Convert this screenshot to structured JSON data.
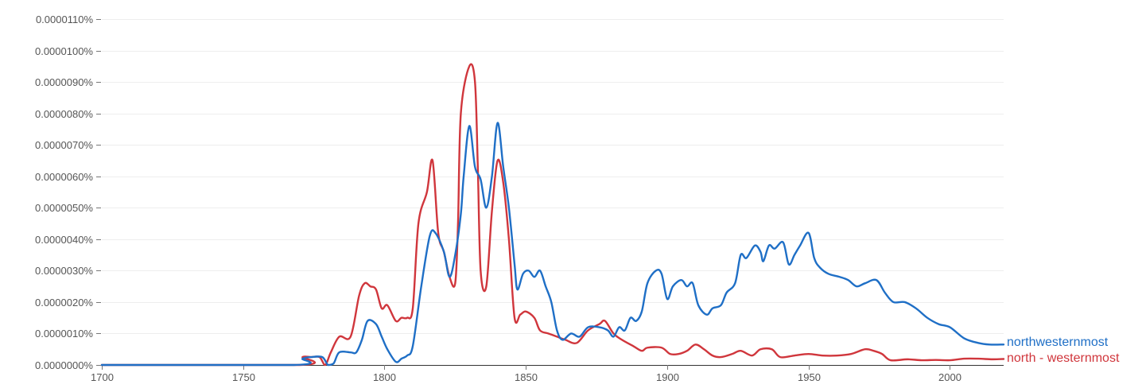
{
  "chart_data": {
    "type": "line",
    "title": "",
    "xlabel": "",
    "ylabel": "",
    "xlim": [
      1700,
      2019
    ],
    "ylim": [
      0,
      1.1e-05
    ],
    "grid": true,
    "x_ticks": [
      1700,
      1750,
      1800,
      1850,
      1900,
      1950,
      2000
    ],
    "x_tick_labels": [
      "1700",
      "1750",
      "1800",
      "1850",
      "1900",
      "1950",
      "2000"
    ],
    "y_ticks": [
      0,
      1e-06,
      2e-06,
      3e-06,
      4e-06,
      5e-06,
      6e-06,
      7e-06,
      8e-06,
      9e-06,
      1e-05,
      1.1e-05
    ],
    "y_tick_labels": [
      "0.0000000%",
      "0.0000010%",
      "0.0000020%",
      "0.0000030%",
      "0.0000040%",
      "0.0000050%",
      "0.0000060%",
      "0.0000070%",
      "0.0000080%",
      "0.0000090%",
      "0.0000100%",
      "0.0000110%"
    ],
    "legend_placement": "right end of lines",
    "series": [
      {
        "name": "northwesternmost",
        "color": "#1f6fc6",
        "points": [
          [
            1700,
            0
          ],
          [
            1768,
            0
          ],
          [
            1771,
            2e-07
          ],
          [
            1774,
            2.5e-07
          ],
          [
            1778,
            2.5e-07
          ],
          [
            1780,
            0
          ],
          [
            1782,
            5e-08
          ],
          [
            1784,
            4e-07
          ],
          [
            1788,
            4e-07
          ],
          [
            1790,
            4e-07
          ],
          [
            1792,
            8e-07
          ],
          [
            1794,
            1.4e-06
          ],
          [
            1797,
            1.3e-06
          ],
          [
            1799,
            9e-07
          ],
          [
            1801,
            5e-07
          ],
          [
            1804,
            1e-07
          ],
          [
            1806,
            2e-07
          ],
          [
            1808,
            3e-07
          ],
          [
            1810,
            6e-07
          ],
          [
            1813,
            2.5e-06
          ],
          [
            1816,
            4.1e-06
          ],
          [
            1818,
            4.2e-06
          ],
          [
            1821,
            3.6e-06
          ],
          [
            1823,
            2.8e-06
          ],
          [
            1825,
            3.5e-06
          ],
          [
            1827,
            4.8e-06
          ],
          [
            1828,
            6e-06
          ],
          [
            1830,
            7.6e-06
          ],
          [
            1832,
            6.3e-06
          ],
          [
            1834,
            5.9e-06
          ],
          [
            1836,
            5e-06
          ],
          [
            1838,
            6e-06
          ],
          [
            1840,
            7.7e-06
          ],
          [
            1842,
            6.3e-06
          ],
          [
            1844,
            5e-06
          ],
          [
            1846,
            3.2e-06
          ],
          [
            1847,
            2.4e-06
          ],
          [
            1849,
            2.9e-06
          ],
          [
            1851,
            3e-06
          ],
          [
            1853,
            2.8e-06
          ],
          [
            1855,
            3e-06
          ],
          [
            1857,
            2.5e-06
          ],
          [
            1859,
            2e-06
          ],
          [
            1861,
            1.1e-06
          ],
          [
            1863,
            8e-07
          ],
          [
            1866,
            1e-06
          ],
          [
            1869,
            9e-07
          ],
          [
            1872,
            1.2e-06
          ],
          [
            1876,
            1.2e-06
          ],
          [
            1879,
            1.1e-06
          ],
          [
            1881,
            9e-07
          ],
          [
            1883,
            1.2e-06
          ],
          [
            1885,
            1.1e-06
          ],
          [
            1887,
            1.5e-06
          ],
          [
            1889,
            1.4e-06
          ],
          [
            1891,
            1.7e-06
          ],
          [
            1893,
            2.6e-06
          ],
          [
            1896,
            3e-06
          ],
          [
            1898,
            2.9e-06
          ],
          [
            1900,
            2.1e-06
          ],
          [
            1902,
            2.5e-06
          ],
          [
            1905,
            2.7e-06
          ],
          [
            1907,
            2.5e-06
          ],
          [
            1909,
            2.6e-06
          ],
          [
            1911,
            1.9e-06
          ],
          [
            1914,
            1.6e-06
          ],
          [
            1916,
            1.8e-06
          ],
          [
            1919,
            1.9e-06
          ],
          [
            1921,
            2.3e-06
          ],
          [
            1924,
            2.6e-06
          ],
          [
            1926,
            3.5e-06
          ],
          [
            1928,
            3.4e-06
          ],
          [
            1931,
            3.8e-06
          ],
          [
            1933,
            3.6e-06
          ],
          [
            1934,
            3.3e-06
          ],
          [
            1936,
            3.8e-06
          ],
          [
            1938,
            3.7e-06
          ],
          [
            1941,
            3.9e-06
          ],
          [
            1943,
            3.2e-06
          ],
          [
            1945,
            3.5e-06
          ],
          [
            1947,
            3.8e-06
          ],
          [
            1950,
            4.2e-06
          ],
          [
            1952,
            3.4e-06
          ],
          [
            1954,
            3.1e-06
          ],
          [
            1957,
            2.9e-06
          ],
          [
            1961,
            2.8e-06
          ],
          [
            1964,
            2.7e-06
          ],
          [
            1967,
            2.5e-06
          ],
          [
            1970,
            2.6e-06
          ],
          [
            1974,
            2.7e-06
          ],
          [
            1977,
            2.3e-06
          ],
          [
            1980,
            2e-06
          ],
          [
            1984,
            2e-06
          ],
          [
            1988,
            1.8e-06
          ],
          [
            1992,
            1.5e-06
          ],
          [
            1996,
            1.3e-06
          ],
          [
            2000,
            1.2e-06
          ],
          [
            2005,
            8.5e-07
          ],
          [
            2010,
            7e-07
          ],
          [
            2014,
            6.5e-07
          ],
          [
            2019,
            6.5e-07
          ]
        ]
      },
      {
        "name": "north - westernmost",
        "color": "#d0363c",
        "points": [
          [
            1700,
            0
          ],
          [
            1770,
            0
          ],
          [
            1771,
            2.5e-07
          ],
          [
            1774,
            2.5e-07
          ],
          [
            1777,
            2.5e-07
          ],
          [
            1779,
            0
          ],
          [
            1781,
            4e-07
          ],
          [
            1784,
            9e-07
          ],
          [
            1788,
            9e-07
          ],
          [
            1791,
            2.2e-06
          ],
          [
            1793,
            2.6e-06
          ],
          [
            1795,
            2.5e-06
          ],
          [
            1797,
            2.4e-06
          ],
          [
            1799,
            1.8e-06
          ],
          [
            1801,
            1.9e-06
          ],
          [
            1804,
            1.4e-06
          ],
          [
            1806,
            1.5e-06
          ],
          [
            1808,
            1.5e-06
          ],
          [
            1810,
            1.8e-06
          ],
          [
            1812,
            4.5e-06
          ],
          [
            1815,
            5.5e-06
          ],
          [
            1817,
            6.5e-06
          ],
          [
            1819,
            4.2e-06
          ],
          [
            1821,
            3.6e-06
          ],
          [
            1823,
            2.8e-06
          ],
          [
            1825,
            2.6e-06
          ],
          [
            1826,
            4.5e-06
          ],
          [
            1827,
            8e-06
          ],
          [
            1830,
            9.5e-06
          ],
          [
            1832,
            9e-06
          ],
          [
            1833,
            6.3e-06
          ],
          [
            1834,
            3e-06
          ],
          [
            1836,
            2.5e-06
          ],
          [
            1838,
            4.9e-06
          ],
          [
            1840,
            6.5e-06
          ],
          [
            1842,
            5.8e-06
          ],
          [
            1844,
            4e-06
          ],
          [
            1846,
            1.5e-06
          ],
          [
            1848,
            1.6e-06
          ],
          [
            1850,
            1.7e-06
          ],
          [
            1853,
            1.5e-06
          ],
          [
            1855,
            1.1e-06
          ],
          [
            1858,
            1e-06
          ],
          [
            1861,
            9e-07
          ],
          [
            1864,
            8e-07
          ],
          [
            1868,
            7e-07
          ],
          [
            1872,
            1.1e-06
          ],
          [
            1876,
            1.3e-06
          ],
          [
            1878,
            1.4e-06
          ],
          [
            1881,
            1e-06
          ],
          [
            1884,
            8e-07
          ],
          [
            1888,
            6e-07
          ],
          [
            1891,
            4.5e-07
          ],
          [
            1893,
            5.5e-07
          ],
          [
            1898,
            5.5e-07
          ],
          [
            1901,
            3.5e-07
          ],
          [
            1904,
            3.5e-07
          ],
          [
            1907,
            4.5e-07
          ],
          [
            1910,
            6.5e-07
          ],
          [
            1913,
            5e-07
          ],
          [
            1916,
            3e-07
          ],
          [
            1919,
            2.5e-07
          ],
          [
            1923,
            3.5e-07
          ],
          [
            1926,
            4.5e-07
          ],
          [
            1930,
            3e-07
          ],
          [
            1933,
            5e-07
          ],
          [
            1937,
            5e-07
          ],
          [
            1940,
            2.5e-07
          ],
          [
            1945,
            3e-07
          ],
          [
            1950,
            3.5e-07
          ],
          [
            1955,
            3e-07
          ],
          [
            1960,
            3e-07
          ],
          [
            1965,
            3.5e-07
          ],
          [
            1970,
            5e-07
          ],
          [
            1973,
            4.5e-07
          ],
          [
            1976,
            3.5e-07
          ],
          [
            1979,
            1.5e-07
          ],
          [
            1985,
            1.8e-07
          ],
          [
            1990,
            1.5e-07
          ],
          [
            1995,
            1.6e-07
          ],
          [
            2000,
            1.5e-07
          ],
          [
            2005,
            2e-07
          ],
          [
            2010,
            2e-07
          ],
          [
            2015,
            1.8e-07
          ],
          [
            2019,
            1.9e-07
          ]
        ]
      }
    ]
  }
}
